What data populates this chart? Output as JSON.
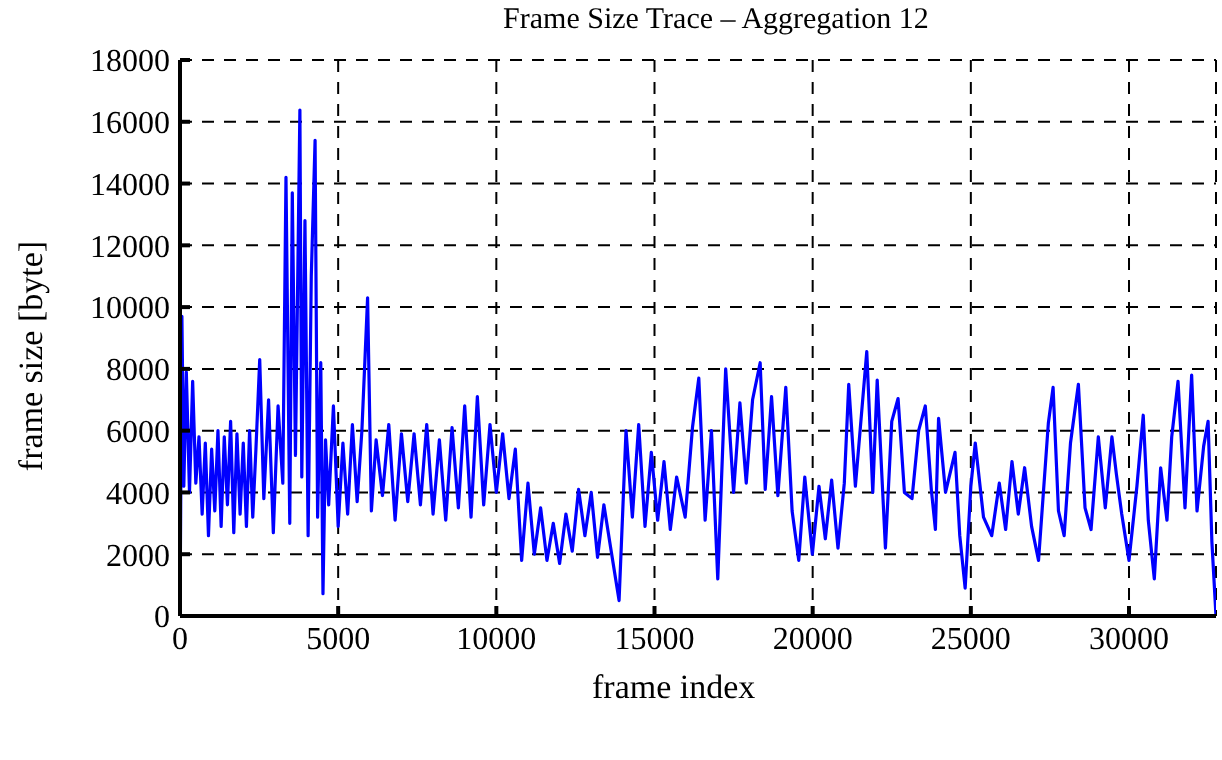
{
  "chart_data": {
    "type": "line",
    "title": "Frame Size Trace – Aggregation 12",
    "xlabel": "frame index",
    "ylabel": "frame size [byte]",
    "x": [
      0,
      60,
      120,
      200,
      300,
      400,
      500,
      600,
      700,
      800,
      900,
      1000,
      1100,
      1200,
      1300,
      1400,
      1500,
      1600,
      1700,
      1800,
      1900,
      2000,
      2100,
      2200,
      2300,
      2400,
      2520,
      2650,
      2800,
      2950,
      3100,
      3250,
      3350,
      3470,
      3550,
      3650,
      3790,
      3850,
      3950,
      4050,
      4150,
      4270,
      4350,
      4450,
      4520,
      4600,
      4700,
      4850,
      5000,
      5150,
      5300,
      5450,
      5600,
      5750,
      5930,
      6050,
      6200,
      6400,
      6600,
      6800,
      7000,
      7200,
      7400,
      7600,
      7800,
      8000,
      8200,
      8400,
      8600,
      8800,
      9000,
      9200,
      9400,
      9600,
      9800,
      10000,
      10200,
      10400,
      10600,
      10800,
      11000,
      11200,
      11400,
      11600,
      11800,
      12000,
      12200,
      12400,
      12600,
      12800,
      13000,
      13200,
      13400,
      13600,
      13880,
      14100,
      14300,
      14500,
      14700,
      14900,
      15100,
      15300,
      15500,
      15700,
      15970,
      16200,
      16400,
      16600,
      16800,
      17000,
      17250,
      17500,
      17700,
      17900,
      18100,
      18340,
      18500,
      18700,
      18900,
      19150,
      19350,
      19560,
      19750,
      19990,
      20200,
      20400,
      20600,
      20800,
      21000,
      21140,
      21350,
      21710,
      21900,
      22040,
      22300,
      22500,
      22700,
      22900,
      23140,
      23350,
      23560,
      23750,
      23880,
      23980,
      24200,
      24500,
      24650,
      24820,
      25000,
      25140,
      25400,
      25660,
      25900,
      26100,
      26300,
      26500,
      26700,
      26920,
      27140,
      27450,
      27600,
      27770,
      27950,
      28150,
      28400,
      28610,
      28800,
      29030,
      29250,
      29460,
      29600,
      29770,
      30000,
      30250,
      30450,
      30610,
      30800,
      31000,
      31200,
      31350,
      31550,
      31770,
      31980,
      32150,
      32360,
      32500,
      32620,
      32750
    ],
    "values": [
      0,
      9700,
      4200,
      7900,
      4000,
      7600,
      4300,
      5800,
      3300,
      5600,
      2600,
      5400,
      3400,
      6000,
      2900,
      5800,
      3600,
      6300,
      2700,
      5900,
      3300,
      5600,
      2900,
      6000,
      3200,
      5400,
      8300,
      3800,
      7000,
      2700,
      6800,
      4300,
      14200,
      3000,
      13700,
      5200,
      16380,
      4500,
      12800,
      2600,
      11000,
      15400,
      3200,
      8200,
      720,
      5700,
      3600,
      6800,
      2900,
      5600,
      3300,
      6200,
      3700,
      6000,
      10300,
      3400,
      5700,
      3900,
      6200,
      3100,
      5900,
      3700,
      5900,
      3600,
      6200,
      3300,
      5700,
      3100,
      6100,
      3500,
      6800,
      3200,
      7100,
      3600,
      6200,
      4000,
      5900,
      3800,
      5400,
      1800,
      4300,
      2000,
      3500,
      1800,
      3000,
      1700,
      3300,
      2100,
      4100,
      2600,
      4000,
      1900,
      3600,
      2300,
      500,
      6000,
      3200,
      6200,
      2900,
      5300,
      3100,
      5000,
      2800,
      4500,
      3200,
      6100,
      7700,
      3100,
      6000,
      1200,
      8000,
      4000,
      6900,
      4300,
      7000,
      8200,
      4100,
      7100,
      3900,
      7400,
      3400,
      1800,
      4500,
      2000,
      4200,
      2500,
      4400,
      2200,
      4300,
      7500,
      4200,
      8560,
      4000,
      7640,
      2200,
      6300,
      7040,
      4000,
      3800,
      6000,
      6800,
      4100,
      2800,
      6400,
      4000,
      5300,
      2600,
      900,
      4200,
      5600,
      3200,
      2600,
      4300,
      2800,
      5000,
      3300,
      4800,
      2900,
      1800,
      6240,
      7400,
      3400,
      2600,
      5600,
      7500,
      3500,
      2800,
      5800,
      3500,
      5800,
      4600,
      3300,
      1800,
      4200,
      6500,
      3100,
      1200,
      4800,
      3100,
      5800,
      7600,
      3500,
      7800,
      3400,
      5500,
      6300,
      2400,
      0
    ],
    "color": "#0000ff",
    "xlim": [
      0,
      32750
    ],
    "ylim": [
      0,
      18000
    ],
    "xticks": [
      0,
      5000,
      10000,
      15000,
      20000,
      25000,
      30000
    ],
    "yticks": [
      0,
      2000,
      4000,
      6000,
      8000,
      10000,
      12000,
      14000,
      16000,
      18000
    ],
    "grid": true
  }
}
